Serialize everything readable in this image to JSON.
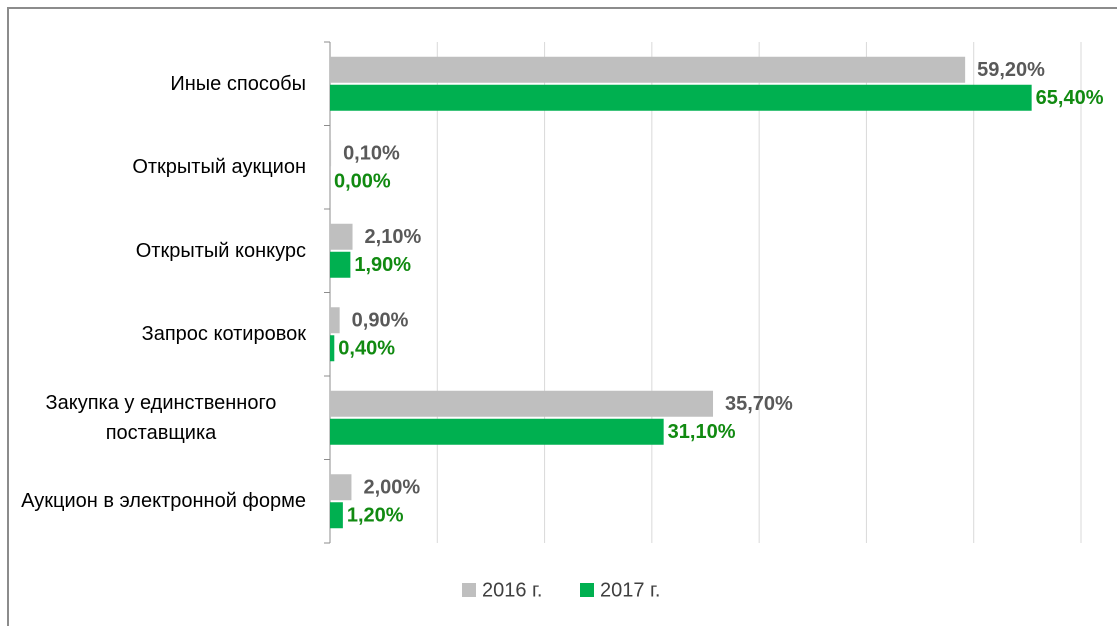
{
  "chart_data": {
    "type": "barh",
    "categories": [
      "Иные способы",
      "Открытый аукцион",
      "Открытый конкурс",
      "Запрос котировок",
      "Закупка у единственного поставщика",
      "Аукцион в электронной форме"
    ],
    "series": [
      {
        "name": "2016 г.",
        "color": "#bfbfbf",
        "label_color": "#595959",
        "values": [
          59.2,
          0.1,
          2.1,
          0.9,
          35.7,
          2.0
        ],
        "value_labels": [
          "59,20%",
          "0,10%",
          "2,10%",
          "0,90%",
          "35,70%",
          "2,00%"
        ]
      },
      {
        "name": "2017 г.",
        "color": "#00b050",
        "label_color": "#118a11",
        "values": [
          65.4,
          0.0,
          1.9,
          0.4,
          31.1,
          1.2
        ],
        "value_labels": [
          "65,40%",
          "0,00%",
          "1,90%",
          "0,40%",
          "31,10%",
          "1,20%"
        ]
      }
    ],
    "xlim": [
      0,
      70
    ],
    "xticks": [
      0,
      10,
      20,
      30,
      40,
      50,
      60,
      70
    ],
    "grid": true,
    "legend": "bottom"
  }
}
